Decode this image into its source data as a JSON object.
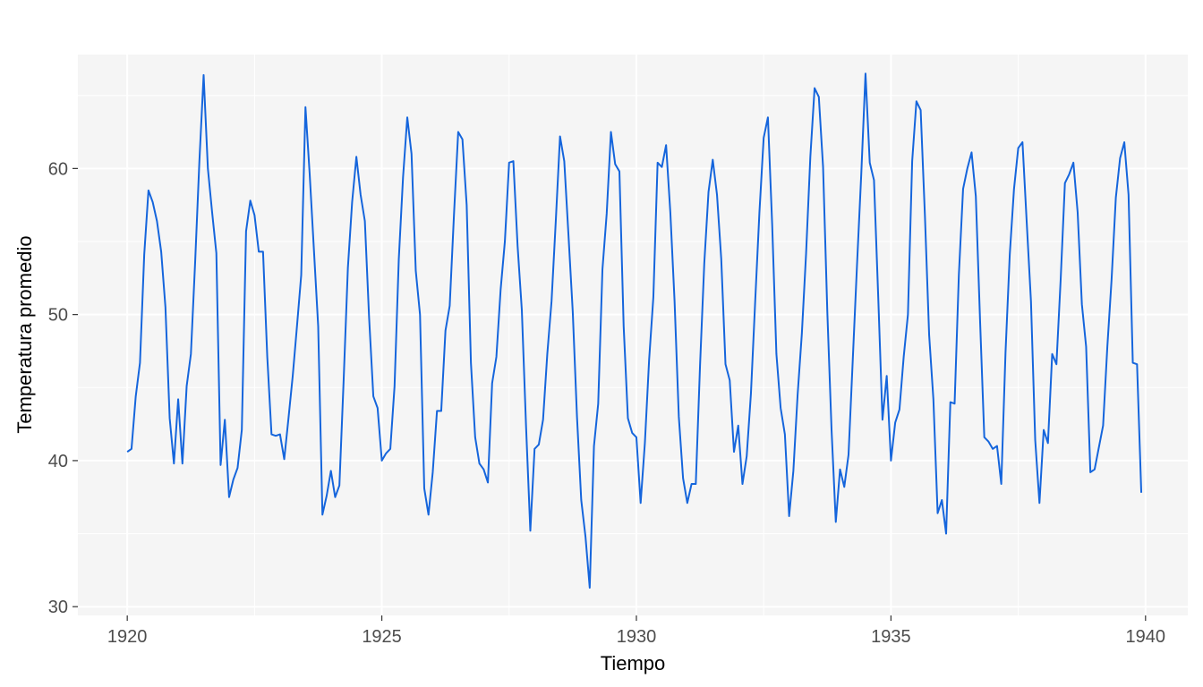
{
  "chart_data": {
    "type": "line",
    "title": "",
    "xlabel": "Tiempo",
    "ylabel": "Temperatura promedio",
    "xlim": [
      1919.03,
      1940.83
    ],
    "ylim": [
      29.4,
      67.8
    ],
    "x_ticks": [
      1920,
      1925,
      1930,
      1935,
      1940
    ],
    "y_ticks": [
      30,
      40,
      50,
      60
    ],
    "grid": true,
    "legend": "none",
    "colors": {
      "line": "#1565dc",
      "panel": "#f5f5f5",
      "grid": "#ffffff"
    },
    "series": [
      {
        "start": 1920,
        "frequency": 12,
        "values": [
          40.6,
          40.8,
          44.4,
          46.7,
          54.1,
          58.5,
          57.7,
          56.4,
          54.3,
          50.5,
          42.9,
          39.8,
          44.2,
          39.8,
          45.1,
          47.3,
          53.6,
          60.5,
          66.4,
          60.0,
          57.0,
          54.2,
          39.7,
          42.8,
          37.5,
          38.7,
          39.5,
          42.1,
          55.7,
          57.8,
          56.8,
          54.3,
          54.3,
          47.1,
          41.8,
          41.7,
          41.8,
          40.1,
          42.9,
          45.8,
          49.2,
          52.7,
          64.2,
          59.6,
          54.4,
          49.2,
          36.3,
          37.6,
          39.3,
          37.5,
          38.3,
          45.5,
          53.2,
          57.7,
          60.8,
          58.2,
          56.4,
          49.8,
          44.4,
          43.6,
          40.0,
          40.5,
          40.8,
          45.1,
          53.8,
          59.4,
          63.5,
          61.0,
          53.0,
          50.0,
          38.1,
          36.3,
          39.2,
          43.4,
          43.4,
          48.9,
          50.6,
          56.8,
          62.5,
          62.0,
          57.5,
          46.7,
          41.6,
          39.8,
          39.4,
          38.5,
          45.3,
          47.1,
          51.7,
          55.0,
          60.4,
          60.5,
          54.7,
          50.3,
          42.3,
          35.2,
          40.8,
          41.1,
          42.8,
          47.3,
          50.9,
          56.4,
          62.2,
          60.5,
          55.4,
          50.2,
          43.0,
          37.3,
          34.8,
          31.3,
          41.0,
          43.9,
          53.1,
          56.9,
          62.5,
          60.3,
          59.8,
          49.2,
          42.9,
          41.9,
          41.6,
          37.1,
          41.2,
          46.9,
          51.2,
          60.4,
          60.1,
          61.6,
          57.0,
          50.9,
          43.0,
          38.8,
          37.1,
          38.4,
          38.4,
          46.5,
          53.5,
          58.4,
          60.6,
          58.2,
          53.8,
          46.6,
          45.5,
          40.6,
          42.4,
          38.4,
          40.3,
          44.6,
          50.9,
          57.0,
          62.1,
          63.5,
          56.2,
          47.3,
          43.6,
          41.8,
          36.2,
          39.3,
          44.5,
          48.7,
          54.2,
          60.8,
          65.5,
          64.9,
          60.1,
          50.2,
          42.1,
          35.8,
          39.4,
          38.2,
          40.4,
          46.9,
          53.4,
          59.6,
          66.5,
          60.4,
          59.2,
          51.2,
          42.8,
          45.8,
          40.0,
          42.6,
          43.5,
          47.1,
          50.0,
          60.5,
          64.6,
          64.0,
          56.8,
          48.6,
          44.2,
          36.4,
          37.3,
          35.0,
          44.0,
          43.9,
          52.7,
          58.6,
          60.0,
          61.1,
          58.1,
          49.6,
          41.6,
          41.3,
          40.8,
          41.0,
          38.4,
          47.4,
          54.1,
          58.6,
          61.4,
          61.8,
          56.3,
          50.9,
          41.4,
          37.1,
          42.1,
          41.2,
          47.3,
          46.6,
          52.4,
          59.0,
          59.6,
          60.4,
          57.0,
          50.7,
          47.8,
          39.2,
          39.4,
          40.9,
          42.4,
          47.8,
          52.4,
          58.0,
          60.7,
          61.8,
          58.2,
          46.7,
          46.6,
          37.8
        ]
      }
    ]
  }
}
